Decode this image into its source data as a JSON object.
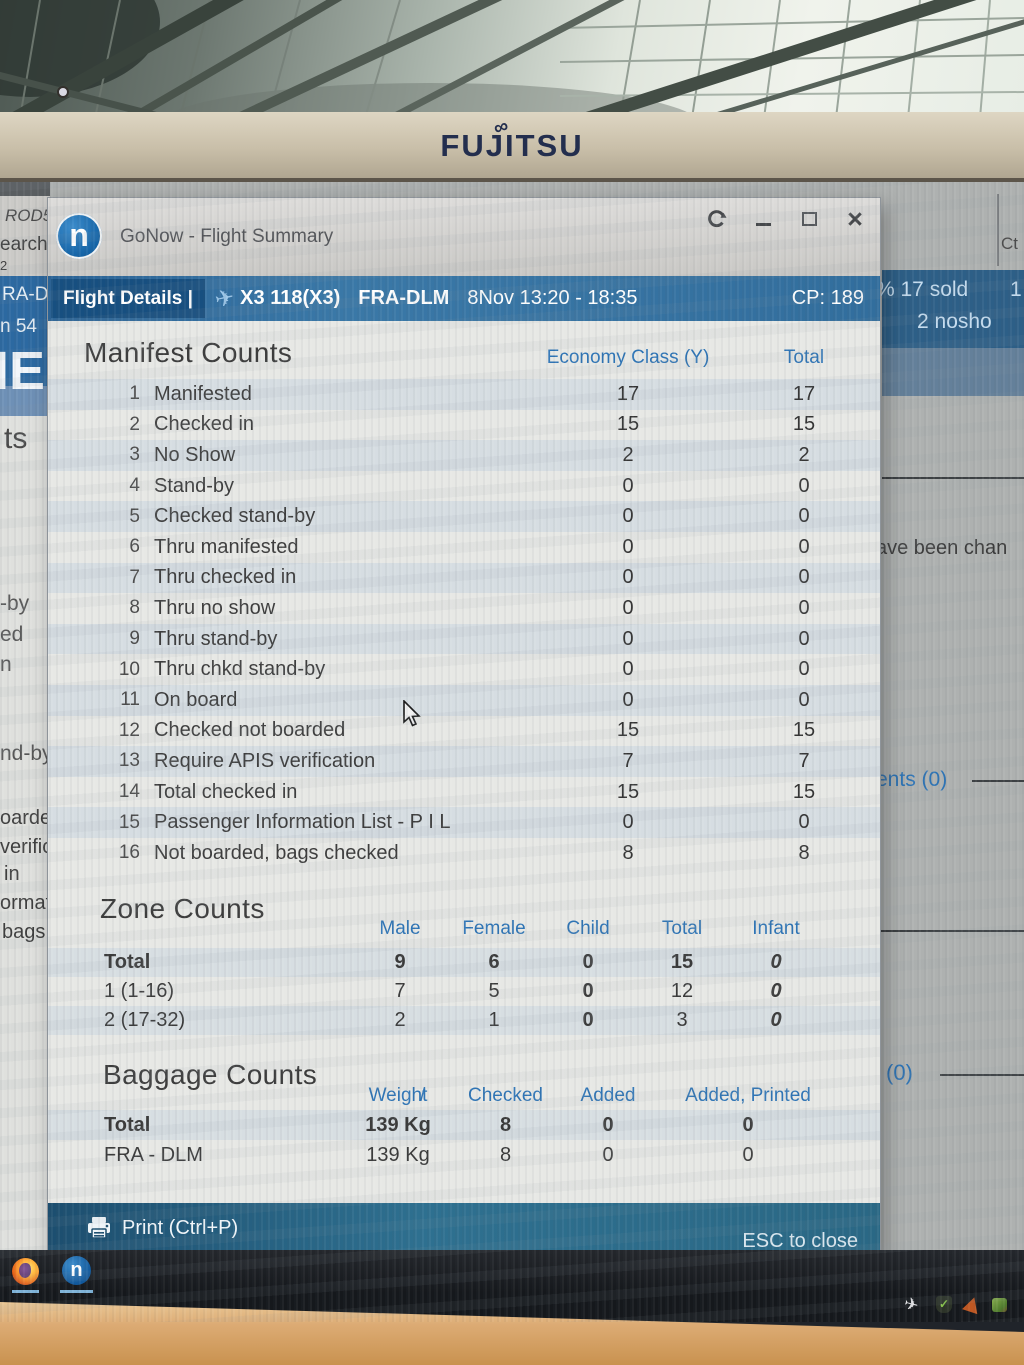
{
  "monitor": {
    "brand": "FUJITSU"
  },
  "window": {
    "title": "GoNow - Flight Summary",
    "logo_letter": "n",
    "controls": {
      "close": "×"
    }
  },
  "flight_bar": {
    "details_label": "Flight Details |",
    "flight_number": "X3 118(X3)",
    "route": "FRA-DLM",
    "schedule": "8Nov 13:20 - 18:35",
    "cp": "CP: 189"
  },
  "manifest": {
    "title": "Manifest Counts",
    "columns": [
      "Economy Class (Y)",
      "Total"
    ],
    "rows": [
      {
        "num": "1",
        "label": "Manifested",
        "economy": "17",
        "total": "17"
      },
      {
        "num": "2",
        "label": "Checked in",
        "economy": "15",
        "total": "15"
      },
      {
        "num": "3",
        "label": "No Show",
        "economy": "2",
        "total": "2"
      },
      {
        "num": "4",
        "label": "Stand-by",
        "economy": "0",
        "total": "0"
      },
      {
        "num": "5",
        "label": "Checked stand-by",
        "economy": "0",
        "total": "0"
      },
      {
        "num": "6",
        "label": "Thru manifested",
        "economy": "0",
        "total": "0"
      },
      {
        "num": "7",
        "label": "Thru checked in",
        "economy": "0",
        "total": "0"
      },
      {
        "num": "8",
        "label": "Thru no show",
        "economy": "0",
        "total": "0"
      },
      {
        "num": "9",
        "label": "Thru stand-by",
        "economy": "0",
        "total": "0"
      },
      {
        "num": "10",
        "label": "Thru chkd stand-by",
        "economy": "0",
        "total": "0"
      },
      {
        "num": "11",
        "label": "On board",
        "economy": "0",
        "total": "0"
      },
      {
        "num": "12",
        "label": "Checked not boarded",
        "economy": "15",
        "total": "15"
      },
      {
        "num": "13",
        "label": "Require APIS verification",
        "economy": "7",
        "total": "7"
      },
      {
        "num": "14",
        "label": "Total checked in",
        "economy": "15",
        "total": "15"
      },
      {
        "num": "15",
        "label": "Passenger Information List - P I L",
        "economy": "0",
        "total": "0"
      },
      {
        "num": "16",
        "label": "Not boarded, bags checked",
        "economy": "8",
        "total": "8"
      }
    ]
  },
  "zones": {
    "title": "Zone Counts",
    "headers": [
      "Male",
      "Female",
      "Child",
      "Total",
      "Infant"
    ],
    "rows": [
      {
        "label": "Total",
        "values": [
          "9",
          "6",
          "0",
          "15",
          "0"
        ],
        "bold": true
      },
      {
        "label": "1 (1-16)",
        "values": [
          "7",
          "5",
          "0",
          "12",
          "0"
        ],
        "bold": false
      },
      {
        "label": "2 (17-32)",
        "values": [
          "2",
          "1",
          "0",
          "3",
          "0"
        ],
        "bold": false
      }
    ]
  },
  "baggage": {
    "title": "Baggage Counts",
    "headers": {
      "weight": "Weight",
      "slash": "/",
      "checked": "Checked",
      "added": "Added",
      "added_printed": "Added, Printed"
    },
    "rows": [
      {
        "label": "Total",
        "weight": "139 Kg",
        "checked": "8",
        "added": "0",
        "added_printed": "0",
        "bold": true
      },
      {
        "label": "FRA - DLM",
        "weight": "139 Kg",
        "checked": "8",
        "added": "0",
        "added_printed": "0",
        "bold": false
      }
    ]
  },
  "footer": {
    "print_label": "Print (Ctrl+P)",
    "esc_label": "ESC to close"
  },
  "background": {
    "left": {
      "rod5": "ROD5",
      "search": "earch",
      "two": "2",
      "ra_d": "RA-D",
      "n54": "n 54",
      "big_ie": "IE",
      "ts": "ts",
      "by": "-by",
      "ed": "ed",
      "n": "n",
      "nd_by": "nd-by",
      "oarde": "oarde",
      "verific": "verific",
      "in": "in",
      "ormat": "ormat",
      "bags": "bags c"
    },
    "right": {
      "ct": "Ct",
      "sold": "% 17 sold",
      "one": "1",
      "nosho": "2 nosho",
      "changed": "ave been chan",
      "ents": "ents (0)",
      "zero": "(0)"
    }
  },
  "taskbar": {
    "apps": [
      "firefox",
      "gonow"
    ],
    "tray": [
      "airplane",
      "shield-check",
      "cone",
      "green-app"
    ]
  },
  "colors": {
    "accent_blue": "#2e74b5",
    "bar_blue": "#336e9f",
    "panel_blue": "#2d5f87",
    "footer_teal": "#2a6885",
    "stripe": "#d9e0e8"
  }
}
